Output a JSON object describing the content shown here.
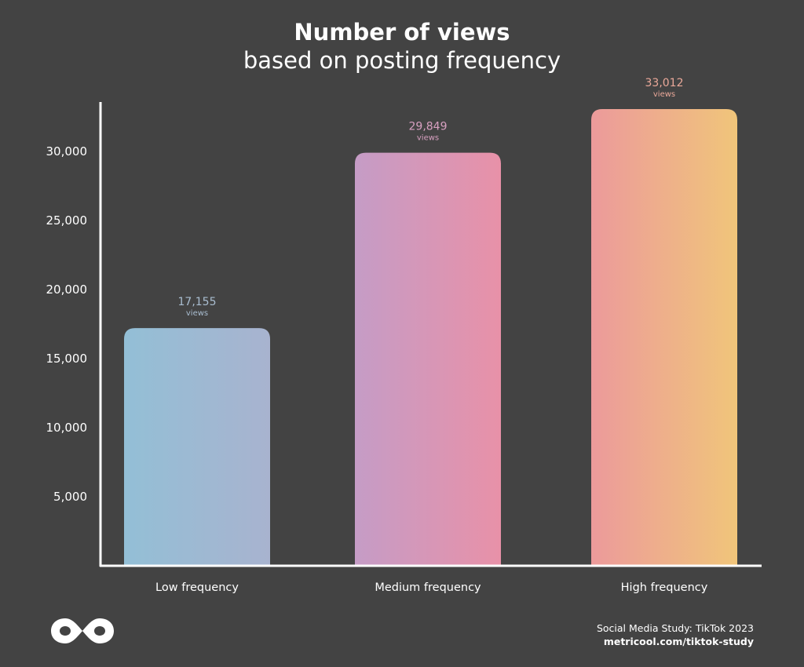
{
  "header": {
    "title": "Number of views",
    "subtitle": "based on posting frequency"
  },
  "chart_data": {
    "type": "bar",
    "categories": [
      "Low frequency",
      "Medium frequency",
      "High frequency"
    ],
    "values": [
      17155,
      29849,
      33012
    ],
    "value_labels": [
      "17,155",
      "29,849",
      "33,012"
    ],
    "value_unit_label": "views",
    "yticks": [
      5000,
      10000,
      15000,
      20000,
      25000,
      30000
    ],
    "ytick_labels": [
      "5,000",
      "10,000",
      "15,000",
      "20,000",
      "25,000",
      "30,000"
    ],
    "ylim": [
      0,
      33500
    ],
    "grid": false,
    "colors": {
      "low": [
        "#93bfd6",
        "#a8b3cf"
      ],
      "medium": [
        "#c59cc6",
        "#e891a8"
      ],
      "high": [
        "#ec9a9b",
        "#f0c57a"
      ],
      "label_colors": [
        "#a9bdd0",
        "#d7a0c0",
        "#eaa899"
      ],
      "axis": "#ffffff",
      "background": "#434343"
    }
  },
  "footer": {
    "source_line": "Social Media Study: TikTok 2023",
    "source_url": "metricool.com/tiktok-study",
    "logo_icon": "metricool-logo-icon"
  }
}
